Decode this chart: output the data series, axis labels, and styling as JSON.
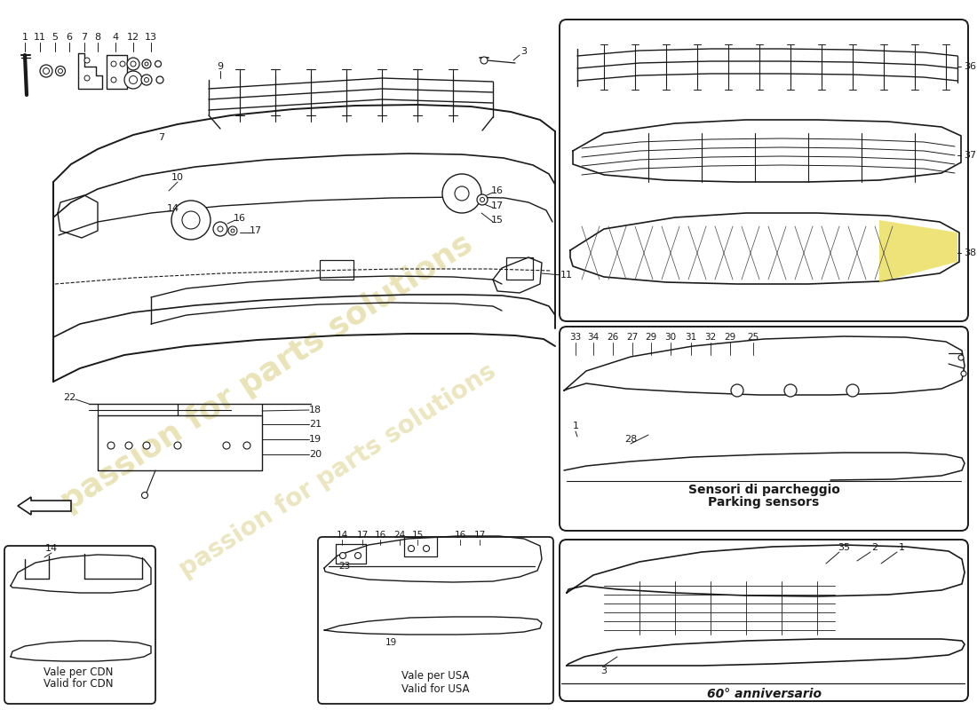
{
  "bg_color": "#ffffff",
  "line_color": "#1a1a1a",
  "wm_color": "#d4c870",
  "box1_label_it": "Sensori di parcheggio",
  "box1_label_en": "Parking sensors",
  "box2_label": "60° anniversario",
  "cdn_it": "Vale per CDN",
  "cdn_en": "Valid for CDN",
  "usa_it": "Vale per USA",
  "usa_en": "Valid for USA",
  "watermark": "passion for parts solutions"
}
